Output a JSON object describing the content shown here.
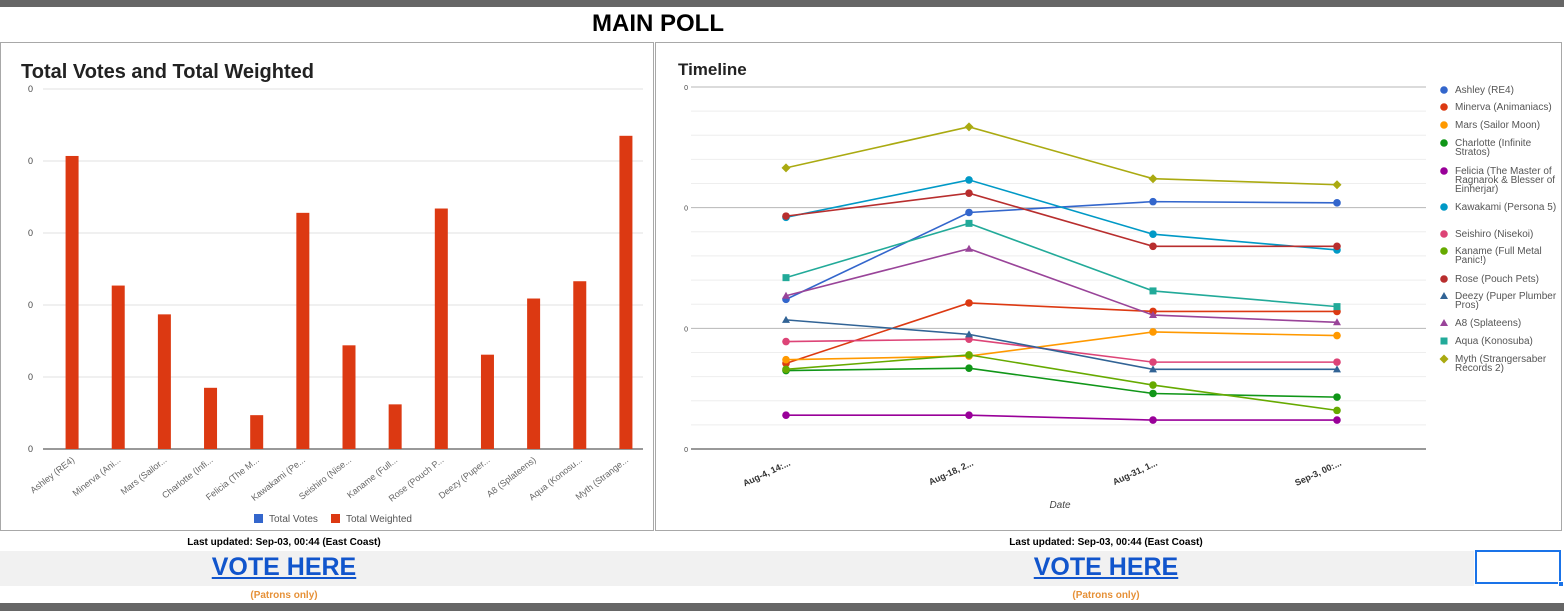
{
  "page": {
    "title": "MAIN POLL",
    "left_updated": "Last updated:  Sep-03, 00:44 (East Coast)",
    "right_updated": "Last updated:  Sep-03, 00:44 (East Coast)",
    "left_vote": "VOTE HERE",
    "right_vote": "VOTE HERE",
    "left_patrons": "(Patrons only)",
    "right_patrons": "(Patrons only)",
    "colors": {
      "vote_link": "#1155cc",
      "patrons": "#e69138",
      "bar": "#dc3912",
      "total_votes": "#3366cc"
    }
  },
  "chart_data": [
    {
      "type": "bar",
      "title": "Total Votes and Total Weighted",
      "categories": [
        "Ashley (RE4)",
        "Minerva (Ani...",
        "Mars (Sailor...",
        "Charlotte (Infi...",
        "Felicia (The M...",
        "Kawakami (Pe...",
        "Seishiro (Nise...",
        "Kaname (Full...",
        "Rose (Pouch P...",
        "Deezy (Puper...",
        "A8 (Splateens)",
        "Aqua (Konosu...",
        "Myth (Strange..."
      ],
      "y_tick_labels": [
        "0",
        "0",
        "0",
        "0",
        "0",
        "0"
      ],
      "ylim": [
        0,
        5
      ],
      "series": [
        {
          "name": "Total Votes",
          "color": "#3366cc",
          "values": [
            0,
            0,
            0,
            0,
            0,
            0,
            0,
            0,
            0,
            0,
            0,
            0,
            0
          ]
        },
        {
          "name": "Total Weighted",
          "color": "#dc3912",
          "values": [
            4.07,
            2.27,
            1.87,
            0.85,
            0.47,
            3.28,
            1.44,
            0.62,
            3.34,
            1.31,
            2.09,
            2.33,
            4.35
          ]
        }
      ],
      "legend": "bottom",
      "grid": true
    },
    {
      "type": "line",
      "title": "Timeline",
      "xlabel": "Date",
      "x": [
        "Aug-4, 14:...",
        "Aug-18, 2...",
        "Aug-31, 1...",
        "Sep-3, 00:..."
      ],
      "y_tick_labels": [
        "0",
        "0",
        "0",
        "0"
      ],
      "ylim": [
        0,
        3
      ],
      "legend": "right",
      "grid": true,
      "series": [
        {
          "name": "Ashley (RE4)",
          "color": "#3366cc",
          "marker": "circle",
          "values": [
            1.24,
            1.96,
            2.05,
            2.04
          ]
        },
        {
          "name": "Minerva (Animaniacs)",
          "color": "#dc3912",
          "marker": "circle",
          "values": [
            0.71,
            1.21,
            1.14,
            1.14
          ]
        },
        {
          "name": "Mars (Sailor Moon)",
          "color": "#ff9900",
          "marker": "circle",
          "values": [
            0.74,
            0.77,
            0.97,
            0.94
          ]
        },
        {
          "name": "Charlotte (Infinite Stratos)",
          "color": "#109618",
          "marker": "circle",
          "values": [
            0.65,
            0.67,
            0.46,
            0.43
          ]
        },
        {
          "name": "Felicia (The Master of Ragnarok & Blesser of Einherjar)",
          "color": "#990099",
          "marker": "circle",
          "values": [
            0.28,
            0.28,
            0.24,
            0.24
          ]
        },
        {
          "name": "Kawakami (Persona 5)",
          "color": "#0099c6",
          "marker": "circle",
          "values": [
            1.92,
            2.23,
            1.78,
            1.65
          ]
        },
        {
          "name": "Seishiro (Nisekoi)",
          "color": "#dd4477",
          "marker": "circle",
          "values": [
            0.89,
            0.91,
            0.72,
            0.72
          ]
        },
        {
          "name": "Kaname (Full Metal Panic!)",
          "color": "#66aa00",
          "marker": "circle",
          "values": [
            0.66,
            0.78,
            0.53,
            0.32
          ]
        },
        {
          "name": "Rose (Pouch Pets)",
          "color": "#b82e2e",
          "marker": "circle",
          "values": [
            1.93,
            2.12,
            1.68,
            1.68
          ]
        },
        {
          "name": "Deezy (Puper Plumber Pros)",
          "color": "#316395",
          "marker": "triangle",
          "values": [
            1.07,
            0.95,
            0.66,
            0.66
          ]
        },
        {
          "name": "A8 (Splateens)",
          "color": "#994499",
          "marker": "triangle",
          "values": [
            1.27,
            1.66,
            1.11,
            1.05
          ]
        },
        {
          "name": "Aqua (Konosuba)",
          "color": "#22aa99",
          "marker": "square",
          "values": [
            1.42,
            1.87,
            1.31,
            1.18
          ]
        },
        {
          "name": "Myth (Strangersaber Records 2)",
          "color": "#aaaa11",
          "marker": "diamond",
          "values": [
            2.33,
            2.67,
            2.24,
            2.19
          ]
        }
      ]
    }
  ]
}
